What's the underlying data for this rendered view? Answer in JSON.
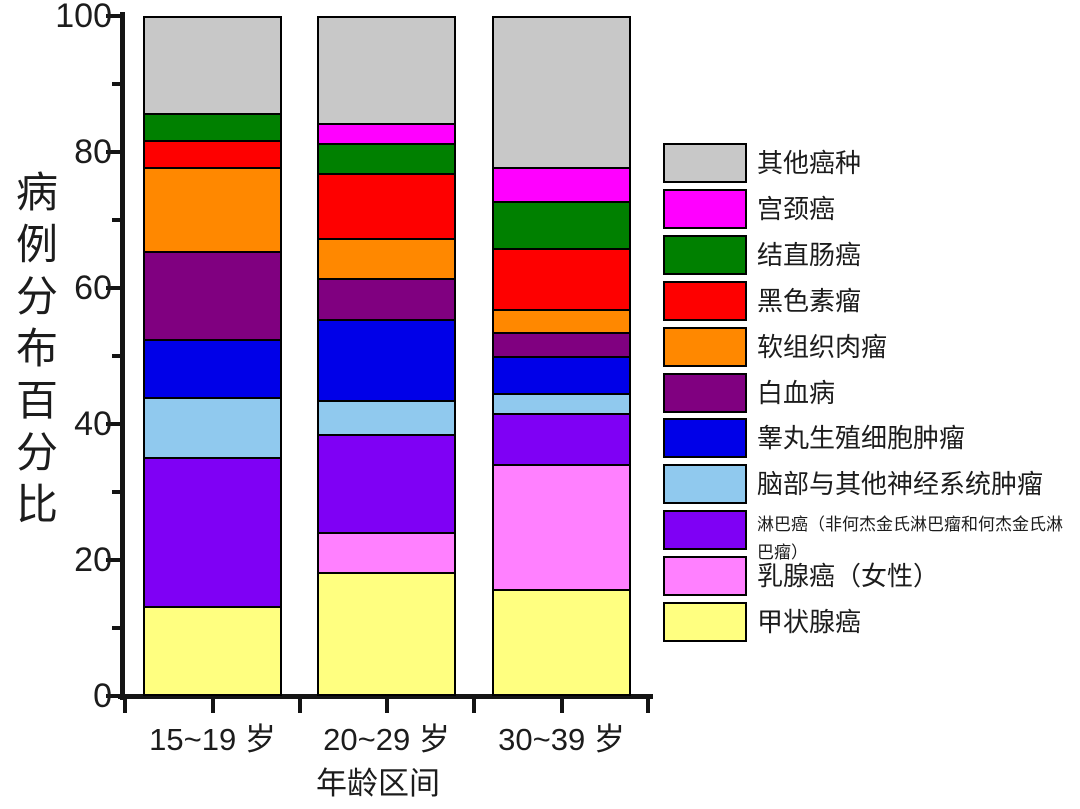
{
  "chart_data": {
    "type": "bar",
    "stacked": true,
    "title": "",
    "xlabel": "年龄区间",
    "ylabel": "病例分布百分比",
    "ylim": [
      0,
      100
    ],
    "yticks": [
      0,
      20,
      40,
      60,
      80,
      100
    ],
    "yticks_minor": [
      10,
      30,
      50,
      70,
      90
    ],
    "categories": [
      "15~19 岁",
      "20~29 岁",
      "30~39 岁"
    ],
    "grid": false,
    "legend_position": "right",
    "series_note": "series listed bottom-to-top of stack; legend displays reverse order (top-to-bottom)",
    "series": [
      {
        "name": "甲状腺癌",
        "color": "#FFFF80",
        "values": [
          13,
          18,
          15.5
        ]
      },
      {
        "name": "乳腺癌（女性）",
        "color": "#FF80FF",
        "values": [
          0,
          6,
          18.5
        ]
      },
      {
        "name": "淋巴癌（非何杰金氏淋巴瘤和何杰金氏淋巴瘤）",
        "color": "#7F00F5",
        "values": [
          22,
          14.5,
          7.5
        ],
        "small_label": true
      },
      {
        "name": "脑部与其他神经系统肿瘤",
        "color": "#90C9EE",
        "values": [
          9,
          5,
          3
        ]
      },
      {
        "name": "睾丸生殖细胞肿瘤",
        "color": "#0000E8",
        "values": [
          8.5,
          12,
          5.5
        ]
      },
      {
        "name": "白血病",
        "color": "#800080",
        "values": [
          13,
          6,
          3.5
        ]
      },
      {
        "name": "软组织肉瘤",
        "color": "#FF8800",
        "values": [
          12.5,
          6,
          3.5
        ]
      },
      {
        "name": "黑色素瘤",
        "color": "#FE0000",
        "values": [
          4,
          9.5,
          9
        ]
      },
      {
        "name": "结直肠癌",
        "color": "#008000",
        "values": [
          4,
          4.5,
          7
        ]
      },
      {
        "name": "宫颈癌",
        "color": "#FF00FF",
        "values": [
          0,
          3,
          5
        ]
      },
      {
        "name": "其他癌种",
        "color": "#C8C8C8",
        "values": [
          14,
          15.5,
          22
        ]
      }
    ],
    "axis_color": "#141414",
    "bar_outline_color": "#000000"
  }
}
